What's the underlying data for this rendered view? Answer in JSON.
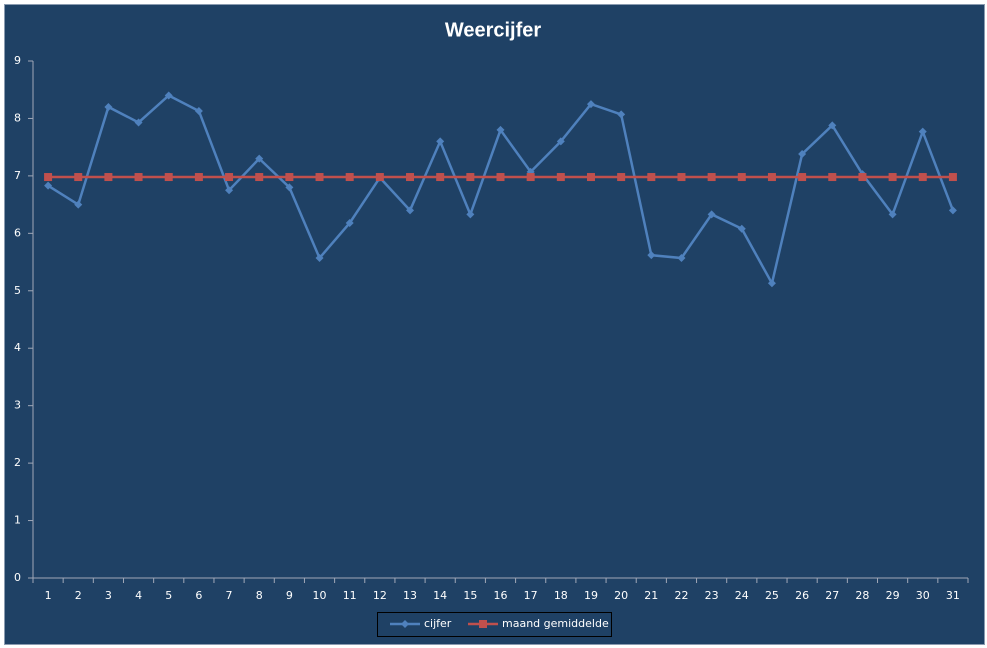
{
  "chart_data": {
    "type": "line",
    "title": "Weercijfer",
    "categories": [
      "1",
      "2",
      "3",
      "4",
      "5",
      "6",
      "7",
      "8",
      "9",
      "10",
      "11",
      "12",
      "13",
      "14",
      "15",
      "16",
      "17",
      "18",
      "19",
      "20",
      "21",
      "22",
      "23",
      "24",
      "25",
      "26",
      "27",
      "28",
      "29",
      "30",
      "31"
    ],
    "series": [
      {
        "name": "cijfer",
        "color": "#4f81bd",
        "marker": "diamond",
        "values": [
          6.83,
          6.5,
          8.2,
          7.93,
          8.4,
          8.13,
          6.75,
          7.3,
          6.8,
          5.57,
          6.18,
          6.97,
          6.4,
          7.6,
          6.33,
          7.8,
          7.07,
          7.6,
          8.25,
          8.07,
          5.62,
          5.57,
          6.33,
          6.08,
          5.13,
          7.38,
          7.88,
          7.03,
          6.33,
          7.77,
          6.4
        ]
      },
      {
        "name": "maand gemiddelde",
        "color": "#c0504d",
        "marker": "square",
        "values": [
          6.98,
          6.98,
          6.98,
          6.98,
          6.98,
          6.98,
          6.98,
          6.98,
          6.98,
          6.98,
          6.98,
          6.98,
          6.98,
          6.98,
          6.98,
          6.98,
          6.98,
          6.98,
          6.98,
          6.98,
          6.98,
          6.98,
          6.98,
          6.98,
          6.98,
          6.98,
          6.98,
          6.98,
          6.98,
          6.98,
          6.98
        ]
      }
    ],
    "ylim": [
      0,
      9
    ],
    "yticks": [
      0,
      1,
      2,
      3,
      4,
      5,
      6,
      7,
      8,
      9
    ],
    "grid": false,
    "legend": "bottom"
  }
}
